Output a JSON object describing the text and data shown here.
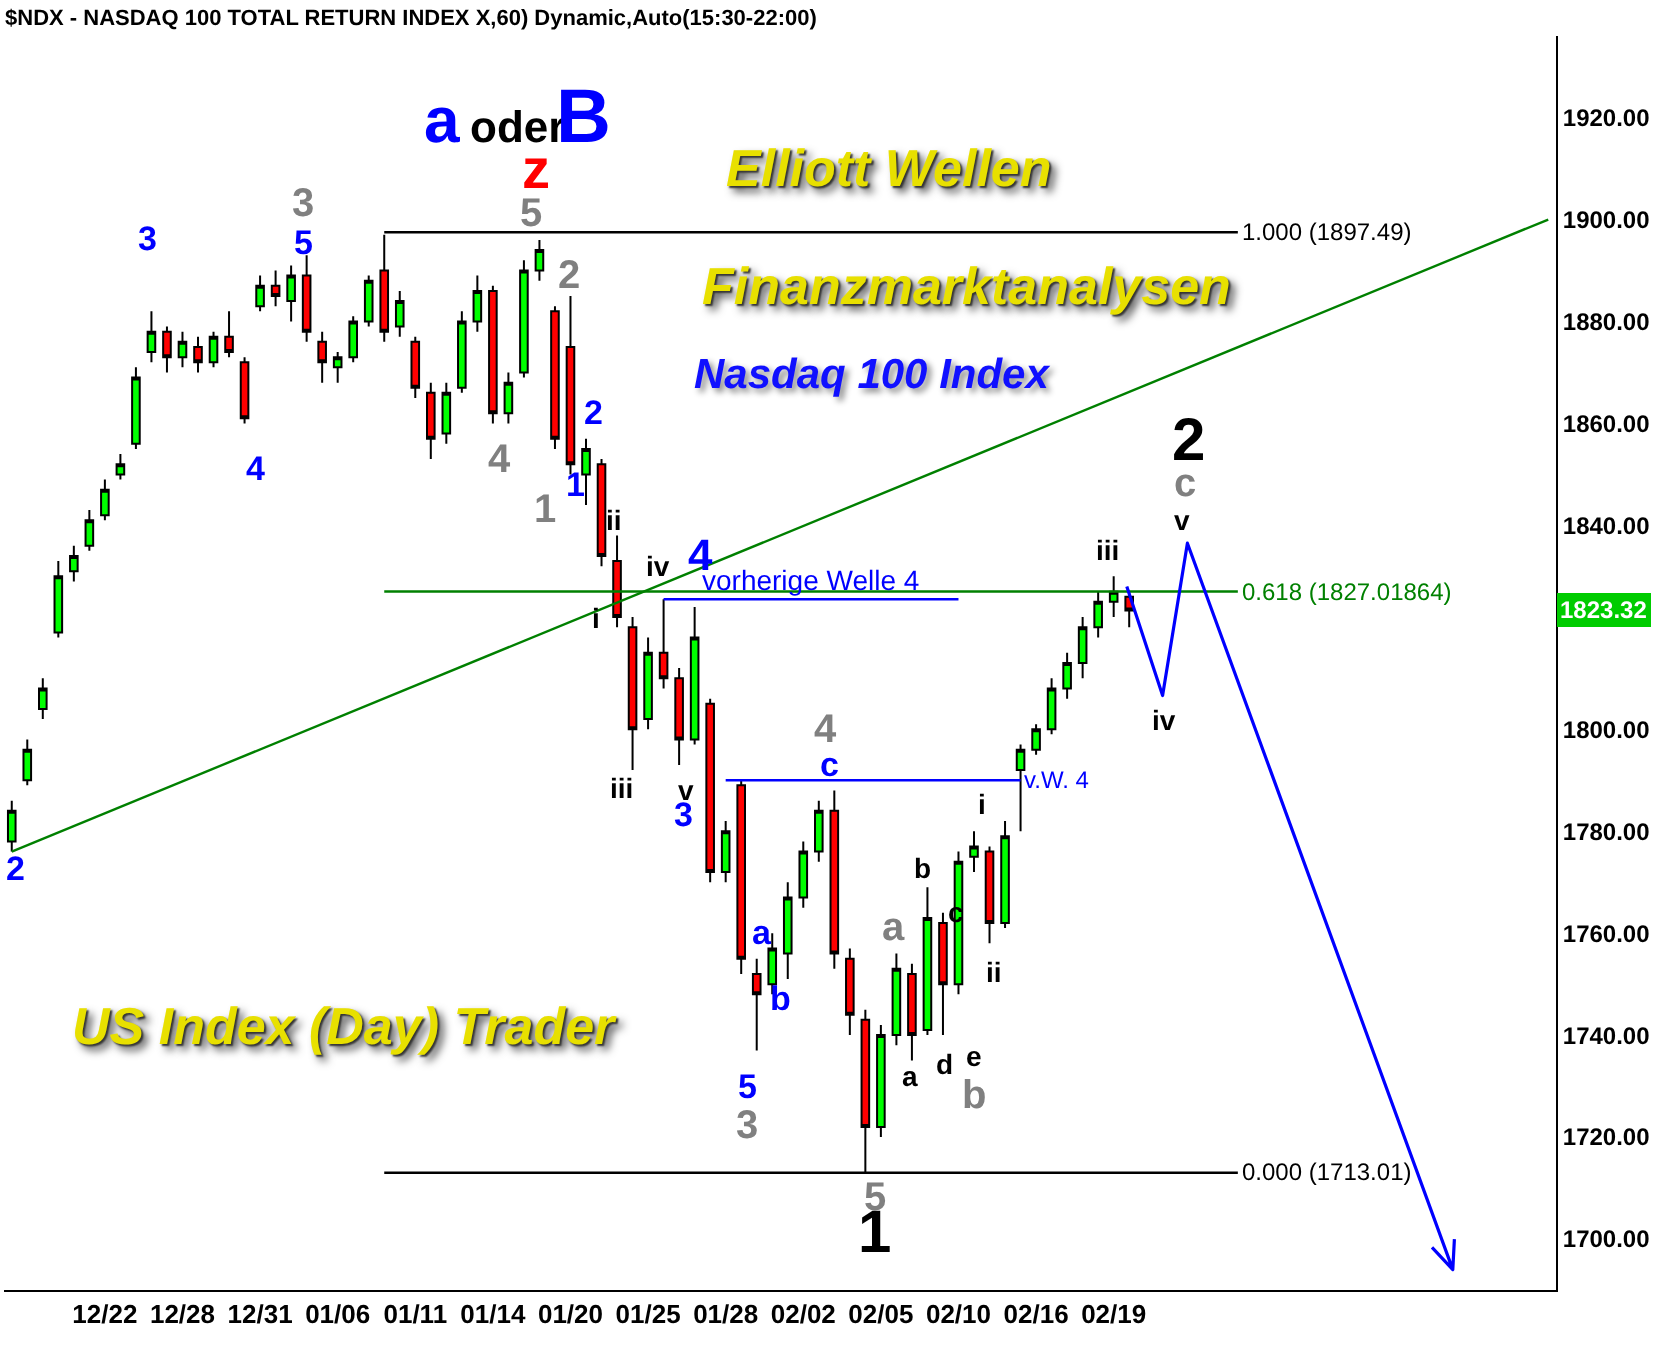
{
  "chart_data": {
    "type": "candlestick",
    "title": "$NDX - NASDAQ 100 TOTAL RETURN INDEX X,60) Dynamic,Auto(15:30-22:00)",
    "categories": [
      null,
      null,
      null,
      null,
      null,
      null,
      "12/22",
      null,
      null,
      null,
      null,
      "12/28",
      null,
      null,
      null,
      null,
      "12/31",
      null,
      null,
      null,
      null,
      "01/06",
      null,
      null,
      null,
      null,
      "01/11",
      null,
      null,
      null,
      null,
      "01/14",
      null,
      null,
      null,
      null,
      "01/20",
      null,
      null,
      null,
      null,
      "01/25",
      null,
      null,
      null,
      null,
      "01/28",
      null,
      null,
      null,
      null,
      "02/02",
      null,
      null,
      null,
      null,
      "02/05",
      null,
      null,
      null,
      null,
      "02/10",
      null,
      null,
      null,
      null,
      "02/16",
      null,
      null,
      null,
      null,
      "02/19",
      null,
      null,
      null,
      null,
      null,
      null,
      null,
      null,
      null,
      null,
      null,
      null,
      null,
      null,
      null,
      null,
      null,
      null,
      null,
      null,
      null,
      null,
      null,
      null,
      null,
      null,
      null,
      null
    ],
    "ohlc": [
      [
        1778,
        1786,
        1776,
        1784
      ],
      [
        1790,
        1798,
        1789,
        1796
      ],
      [
        1804,
        1810,
        1802,
        1808
      ],
      [
        1819,
        1833,
        1818,
        1830
      ],
      [
        1831,
        1836,
        1829,
        1834
      ],
      [
        1836,
        1843,
        1835,
        1841
      ],
      [
        1842,
        1849,
        1841,
        1847
      ],
      [
        1850,
        1854,
        1849,
        1852
      ],
      [
        1856,
        1871,
        1855,
        1869
      ],
      [
        1874,
        1882,
        1872,
        1878
      ],
      [
        1878,
        1879,
        1870,
        1873
      ],
      [
        1873,
        1878,
        1871,
        1876
      ],
      [
        1875,
        1877,
        1870,
        1872
      ],
      [
        1872,
        1878,
        1871,
        1877
      ],
      [
        1877,
        1882,
        1873,
        1874
      ],
      [
        1872,
        1873,
        1860,
        1861
      ],
      [
        1883,
        1889,
        1882,
        1887
      ],
      [
        1887,
        1890,
        1883,
        1885
      ],
      [
        1884,
        1891,
        1880,
        1889
      ],
      [
        1889,
        1893,
        1876,
        1878
      ],
      [
        1876,
        1878,
        1868,
        1872
      ],
      [
        1871,
        1874,
        1868,
        1873
      ],
      [
        1873,
        1881,
        1872,
        1880
      ],
      [
        1880,
        1889,
        1879,
        1888
      ],
      [
        1890,
        1897,
        1876,
        1878
      ],
      [
        1879,
        1886,
        1877,
        1884
      ],
      [
        1876,
        1877,
        1865,
        1867
      ],
      [
        1866,
        1868,
        1853,
        1857
      ],
      [
        1858,
        1868,
        1856,
        1866
      ],
      [
        1867,
        1882,
        1866,
        1880
      ],
      [
        1880,
        1889,
        1878,
        1886
      ],
      [
        1886,
        1887,
        1860,
        1862
      ],
      [
        1862,
        1870,
        1860,
        1868
      ],
      [
        1870,
        1892,
        1869,
        1890
      ],
      [
        1890,
        1896,
        1888,
        1894
      ],
      [
        1882,
        1883,
        1855,
        1857
      ],
      [
        1875,
        1885,
        1850,
        1852
      ],
      [
        1850,
        1857,
        1844,
        1855
      ],
      [
        1852,
        1853,
        1832,
        1834
      ],
      [
        1833,
        1838,
        1820,
        1822
      ],
      [
        1820,
        1822,
        1792,
        1800
      ],
      [
        1802,
        1818,
        1800,
        1815
      ],
      [
        1815,
        1825.5,
        1808,
        1810
      ],
      [
        1810,
        1812,
        1793,
        1798
      ],
      [
        1798,
        1824,
        1797,
        1818
      ],
      [
        1805,
        1806,
        1770,
        1772
      ],
      [
        1772,
        1782,
        1770,
        1780
      ],
      [
        1789,
        1790,
        1752,
        1755
      ],
      [
        1752,
        1755,
        1737,
        1748
      ],
      [
        1750,
        1760,
        1748,
        1757
      ],
      [
        1756,
        1770,
        1751,
        1767
      ],
      [
        1767,
        1778,
        1765,
        1776
      ],
      [
        1776,
        1786,
        1774,
        1784
      ],
      [
        1784,
        1788,
        1753,
        1756
      ],
      [
        1755,
        1757,
        1740,
        1744
      ],
      [
        1743,
        1745,
        1713,
        1722
      ],
      [
        1722,
        1742,
        1720,
        1740
      ],
      [
        1740,
        1756,
        1738,
        1753
      ],
      [
        1752,
        1754,
        1735,
        1740
      ],
      [
        1741,
        1769,
        1740,
        1763
      ],
      [
        1762,
        1764,
        1740,
        1750
      ],
      [
        1750,
        1776,
        1748,
        1774
      ],
      [
        1775,
        1780,
        1772,
        1777
      ],
      [
        1776,
        1777,
        1758,
        1762
      ],
      [
        1762,
        1782,
        1761,
        1779
      ],
      [
        1792,
        1797,
        1780,
        1796
      ],
      [
        1796,
        1801,
        1795,
        1800
      ],
      [
        1800,
        1810,
        1799,
        1808
      ],
      [
        1808,
        1815,
        1806,
        1813
      ],
      [
        1813,
        1822,
        1810,
        1820
      ],
      [
        1820,
        1827,
        1818,
        1825
      ],
      [
        1825,
        1830,
        1822,
        1827
      ],
      [
        1826,
        1827,
        1820,
        1823.32
      ],
      null,
      null,
      null,
      null,
      null,
      null,
      null,
      null,
      null,
      null,
      null,
      null,
      null,
      null,
      null,
      null,
      null,
      null,
      null,
      null,
      null,
      null,
      null,
      null,
      null,
      null,
      null
    ],
    "series": [
      {
        "type": "line",
        "color": "#008000",
        "values": [
          1776,
          null,
          null,
          null,
          null,
          null,
          null,
          null,
          null,
          null,
          null,
          null,
          null,
          null,
          null,
          null,
          null,
          null,
          null,
          null,
          null,
          null,
          null,
          null,
          null,
          null,
          null,
          null,
          null,
          null,
          null,
          null,
          null,
          null,
          null,
          null,
          null,
          null,
          null,
          null,
          null,
          null,
          null,
          null,
          null,
          null,
          null,
          null,
          null,
          null,
          null,
          null,
          null,
          null,
          null,
          null,
          null,
          null,
          null,
          null,
          null,
          null,
          null,
          null,
          null,
          null,
          null,
          null,
          null,
          null,
          null,
          null,
          null,
          null,
          null,
          null,
          null,
          null,
          null,
          null,
          null,
          null,
          null,
          null,
          null,
          null,
          null,
          null,
          null,
          null,
          null,
          null,
          null,
          null,
          null,
          null,
          null,
          null,
          null,
          1900
        ]
      },
      {
        "type": "line",
        "name": "1.000 (1897.49)",
        "color": "#000000",
        "values": [
          null,
          null,
          null,
          null,
          null,
          null,
          null,
          null,
          null,
          null,
          null,
          null,
          null,
          null,
          null,
          null,
          null,
          null,
          null,
          null,
          null,
          null,
          null,
          null,
          1897.49,
          null,
          null,
          null,
          null,
          null,
          null,
          null,
          null,
          null,
          null,
          null,
          null,
          null,
          null,
          null,
          null,
          null,
          null,
          null,
          null,
          null,
          null,
          null,
          null,
          null,
          null,
          null,
          null,
          null,
          null,
          null,
          null,
          null,
          null,
          null,
          null,
          null,
          null,
          null,
          null,
          null,
          null,
          null,
          null,
          null,
          null,
          null,
          null,
          null,
          null,
          null,
          null,
          null,
          null,
          1897.49,
          null,
          null,
          null,
          null,
          null,
          null,
          null,
          null,
          null,
          null,
          null,
          null,
          null,
          null,
          null,
          null,
          null,
          null,
          null,
          null
        ]
      },
      {
        "type": "line",
        "name": "0.618 (1827.01864)",
        "color": "#008000",
        "values": [
          null,
          null,
          null,
          null,
          null,
          null,
          null,
          null,
          null,
          null,
          null,
          null,
          null,
          null,
          null,
          null,
          null,
          null,
          null,
          null,
          null,
          null,
          null,
          null,
          1827.01864,
          null,
          null,
          null,
          null,
          null,
          null,
          null,
          null,
          null,
          null,
          null,
          null,
          null,
          null,
          null,
          null,
          null,
          null,
          null,
          null,
          null,
          null,
          null,
          null,
          null,
          null,
          null,
          null,
          null,
          null,
          null,
          null,
          null,
          null,
          null,
          null,
          null,
          null,
          null,
          null,
          null,
          null,
          null,
          null,
          null,
          null,
          null,
          null,
          null,
          null,
          null,
          null,
          null,
          null,
          1827.01864,
          null,
          null,
          null,
          null,
          null,
          null,
          null,
          null,
          null,
          null,
          null,
          null,
          null,
          null,
          null,
          null,
          null,
          null,
          null,
          null
        ]
      },
      {
        "type": "line",
        "name": "0.000 (1713.01)",
        "color": "#000000",
        "values": [
          null,
          null,
          null,
          null,
          null,
          null,
          null,
          null,
          null,
          null,
          null,
          null,
          null,
          null,
          null,
          null,
          null,
          null,
          null,
          null,
          null,
          null,
          null,
          null,
          1713.01,
          null,
          null,
          null,
          null,
          null,
          null,
          null,
          null,
          null,
          null,
          null,
          null,
          null,
          null,
          null,
          null,
          null,
          null,
          null,
          null,
          null,
          null,
          null,
          null,
          null,
          null,
          null,
          null,
          null,
          null,
          null,
          null,
          null,
          null,
          null,
          null,
          null,
          null,
          null,
          null,
          null,
          null,
          null,
          null,
          null,
          null,
          null,
          null,
          null,
          null,
          null,
          null,
          null,
          null,
          1713.01,
          null,
          null,
          null,
          null,
          null,
          null,
          null,
          null,
          null,
          null,
          null,
          null,
          null,
          null,
          null,
          null,
          null,
          null,
          null,
          null
        ]
      },
      {
        "type": "line",
        "name": "vorherige Welle 4",
        "color": "#0000ff",
        "values": [
          null,
          null,
          null,
          null,
          null,
          null,
          null,
          null,
          null,
          null,
          null,
          null,
          null,
          null,
          null,
          null,
          null,
          null,
          null,
          null,
          null,
          null,
          null,
          null,
          null,
          null,
          null,
          null,
          null,
          null,
          null,
          null,
          null,
          null,
          null,
          null,
          null,
          null,
          null,
          null,
          null,
          null,
          1825.5,
          null,
          null,
          null,
          null,
          null,
          null,
          null,
          null,
          null,
          null,
          null,
          null,
          null,
          null,
          null,
          null,
          null,
          null,
          1825.5,
          null,
          null,
          null,
          null,
          null,
          null,
          null,
          null,
          null,
          null,
          null,
          null,
          null,
          null,
          null,
          null,
          null,
          null,
          null,
          null,
          null,
          null,
          null,
          null,
          null,
          null,
          null,
          null,
          null,
          null,
          null,
          null,
          null,
          null,
          null,
          null,
          null,
          null
        ]
      },
      {
        "type": "line",
        "name": "v.W. 4",
        "color": "#0000ff",
        "values": [
          null,
          null,
          null,
          null,
          null,
          null,
          null,
          null,
          null,
          null,
          null,
          null,
          null,
          null,
          null,
          null,
          null,
          null,
          null,
          null,
          null,
          null,
          null,
          null,
          null,
          null,
          null,
          null,
          null,
          null,
          null,
          null,
          null,
          null,
          null,
          null,
          null,
          null,
          null,
          null,
          null,
          null,
          null,
          null,
          null,
          null,
          1790,
          null,
          null,
          null,
          null,
          null,
          null,
          null,
          null,
          null,
          null,
          null,
          null,
          null,
          null,
          null,
          null,
          null,
          null,
          1790,
          null,
          null,
          null,
          null,
          null,
          null,
          null,
          null,
          null,
          null,
          null,
          null,
          null,
          null,
          null,
          null,
          null,
          null,
          null,
          null,
          null,
          null,
          null,
          null,
          null,
          null,
          null,
          null,
          null,
          null,
          null,
          null,
          null,
          null
        ]
      }
    ],
    "ylim": [
      1690,
      1936
    ],
    "yticks": [
      {
        "value": 1700,
        "label": "1700.00"
      },
      {
        "value": 1720,
        "label": "1720.00"
      },
      {
        "value": 1740,
        "label": "1740.00"
      },
      {
        "value": 1760,
        "label": "1760.00"
      },
      {
        "value": 1780,
        "label": "1780.00"
      },
      {
        "value": 1800,
        "label": "1800.00"
      },
      {
        "value": 1840,
        "label": "1840.00"
      },
      {
        "value": 1860,
        "label": "1860.00"
      },
      {
        "value": 1880,
        "label": "1880.00"
      },
      {
        "value": 1900,
        "label": "1900.00"
      },
      {
        "value": 1920,
        "label": "1920.00"
      }
    ],
    "annotations": [
      "Elliott Wellen",
      "Finanzmarktanalysen",
      "Nasdaq 100 Index",
      "US Index (Day) Trader",
      "1823.32",
      "2",
      "3",
      "4",
      "5",
      "2",
      "1",
      "4",
      "3",
      "a",
      "b",
      "5",
      "c",
      "3",
      "5",
      "2",
      "4",
      "1",
      "4",
      "3",
      "a",
      "b",
      "5",
      "c",
      "ii",
      "i",
      "iii",
      "iv",
      "v",
      "b",
      "c",
      "a",
      "d",
      "e",
      "i",
      "ii",
      "iii",
      "iv",
      "v",
      "1",
      "2",
      "a",
      "oder",
      "B",
      "z"
    ]
  }
}
